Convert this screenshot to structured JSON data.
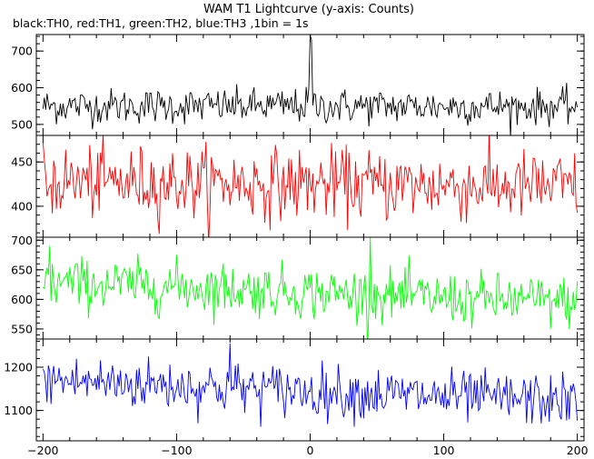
{
  "chart_data": {
    "type": "line",
    "title": "WAM T1 Lightcurve (y-axis: Counts)",
    "subtitle": "black:TH0, red:TH1, green:TH2, blue:TH3 ,1bin = 1s",
    "x_range": [
      -205,
      205
    ],
    "x_ticks": [
      -200,
      -100,
      0,
      100,
      200
    ],
    "x_tick_labels": [
      "−200",
      "−100",
      "0",
      "100",
      "200"
    ],
    "bin_seconds": 1,
    "grid": false,
    "panels": [
      {
        "name": "TH0",
        "color": "#000000",
        "ylim": [
          470,
          745
        ],
        "y_ticks": [
          500,
          600,
          700
        ],
        "y_tick_labels": [
          "500",
          "600",
          "700"
        ],
        "mean": 550,
        "noise_sd": 24,
        "profile": [
          [
            -200,
            550
          ],
          [
            0,
            550
          ],
          [
            200,
            548
          ]
        ],
        "spikes": [
          [
            0,
            745
          ],
          [
            1,
            730
          ],
          [
            -1,
            600
          ]
        ]
      },
      {
        "name": "TH1",
        "color": "#ff0000",
        "ylim": [
          365,
          480
        ],
        "y_ticks": [
          400,
          450
        ],
        "y_tick_labels": [
          "400",
          "450"
        ],
        "mean": 425,
        "noise_sd": 20,
        "profile": [
          [
            -200,
            428
          ],
          [
            0,
            425
          ],
          [
            200,
            422
          ]
        ],
        "spikes": []
      },
      {
        "name": "TH2",
        "color": "#00ff00",
        "ylim": [
          533,
          705
        ],
        "y_ticks": [
          550,
          600,
          650,
          700
        ],
        "y_tick_labels": [
          "550",
          "600",
          "650",
          "700"
        ],
        "mean": 612,
        "noise_sd": 22,
        "profile": [
          [
            -200,
            628
          ],
          [
            -100,
            622
          ],
          [
            0,
            612
          ],
          [
            100,
            602
          ],
          [
            200,
            595
          ]
        ],
        "spikes": [
          [
            45,
            705
          ],
          [
            -195,
            690
          ]
        ]
      },
      {
        "name": "TH3",
        "color": "#0000ff",
        "ylim": [
          1030,
          1265
        ],
        "y_ticks": [
          1100,
          1200
        ],
        "y_tick_labels": [
          "1100",
          "1200"
        ],
        "mean": 1150,
        "noise_sd": 30,
        "profile": [
          [
            -200,
            1170
          ],
          [
            -100,
            1158
          ],
          [
            0,
            1145
          ],
          [
            100,
            1132
          ],
          [
            200,
            1122
          ]
        ],
        "spikes": [
          [
            -60,
            1255
          ]
        ]
      }
    ]
  }
}
